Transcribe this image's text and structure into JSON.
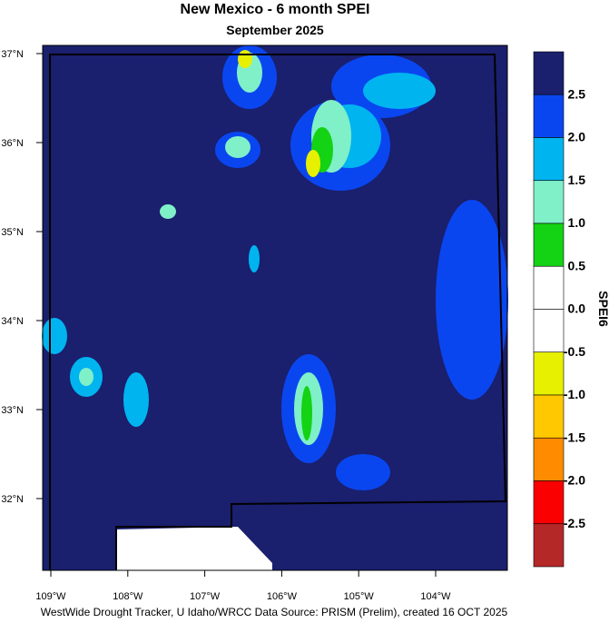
{
  "title": "New Mexico - 6 month SPEI",
  "subtitle": "September 2025",
  "lat_labels": [
    "37°N",
    "36°N",
    "35°N",
    "34°N",
    "33°N",
    "32°N"
  ],
  "lon_labels": [
    "109°W",
    "108°W",
    "107°W",
    "106°W",
    "105°W",
    "104°W"
  ],
  "colorbar": {
    "title": "SPEI6",
    "labels": [
      "2.5",
      "2.0",
      "1.5",
      "1.0",
      "0.5",
      "0.0",
      "-0.5",
      "-1.0",
      "-1.5",
      "-2.0",
      "-2.5"
    ],
    "colors": [
      "#1a1f6e",
      "#0a46f0",
      "#00b4f0",
      "#80f0c8",
      "#14d214",
      "#ffffff",
      "#ffffff",
      "#e6f000",
      "#ffc800",
      "#ff8c00",
      "#fa0000",
      "#b42828"
    ]
  },
  "footer": "WestWide Drought Tracker, U Idaho/WRCC Data Source: PRISM (Prelim), created 16 OCT 2025"
}
